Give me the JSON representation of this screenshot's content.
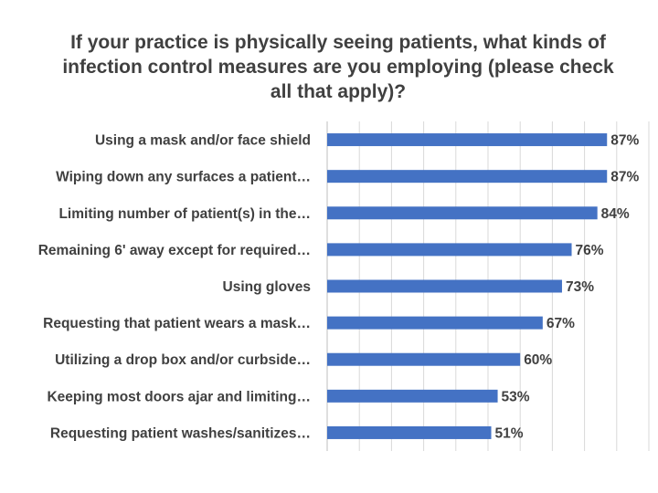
{
  "chart_data": {
    "type": "bar",
    "orientation": "horizontal",
    "title": "If your practice is physically seeing patients, what kinds of infection control measures are you employing (please check all that apply)?",
    "categories": [
      "Using a mask and/or face shield",
      "Wiping down any surfaces a patient…",
      "Limiting number of patient(s) in the…",
      "Remaining 6' away except for required…",
      "Using gloves",
      "Requesting that patient wears a mask…",
      "Utilizing a drop box and/or curbside…",
      "Keeping most doors ajar and limiting…",
      "Requesting patient washes/sanitizes…"
    ],
    "values": [
      87,
      87,
      84,
      76,
      73,
      67,
      60,
      53,
      51
    ],
    "value_labels": [
      "87%",
      "87%",
      "84%",
      "76%",
      "73%",
      "67%",
      "60%",
      "53%",
      "51%"
    ],
    "xlim": [
      0,
      100
    ],
    "grid": true,
    "legend": "none",
    "bar_color": "#4472c4",
    "text_color": "#404040",
    "grid_color": "#d9d9d9"
  }
}
